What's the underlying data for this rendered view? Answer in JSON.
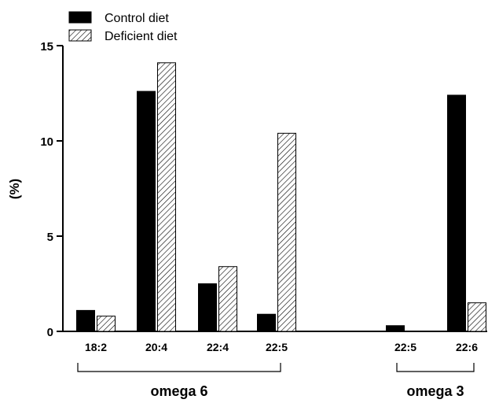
{
  "chart_data": {
    "type": "bar",
    "title": "",
    "xlabel": "",
    "ylabel": "(%)",
    "ylim": [
      0,
      15
    ],
    "yticks": [
      0,
      5,
      10,
      15
    ],
    "grid": false,
    "legend_position": "top-left",
    "categories": [
      "18:2",
      "20:4",
      "22:4",
      "22:5",
      "22:5",
      "22:6"
    ],
    "series": [
      {
        "name": "Control diet",
        "pattern": "solid",
        "color": "#000000",
        "values": [
          1.1,
          12.6,
          2.5,
          0.9,
          0.3,
          12.4
        ]
      },
      {
        "name": "Deficient diet",
        "pattern": "hatched",
        "color": "#000000",
        "values": [
          0.8,
          14.1,
          3.4,
          10.4,
          0.0,
          1.5
        ]
      }
    ],
    "groups": [
      {
        "label": "omega 6",
        "categories": [
          0,
          1,
          2,
          3
        ]
      },
      {
        "label": "omega 3",
        "categories": [
          4,
          5
        ]
      }
    ]
  }
}
